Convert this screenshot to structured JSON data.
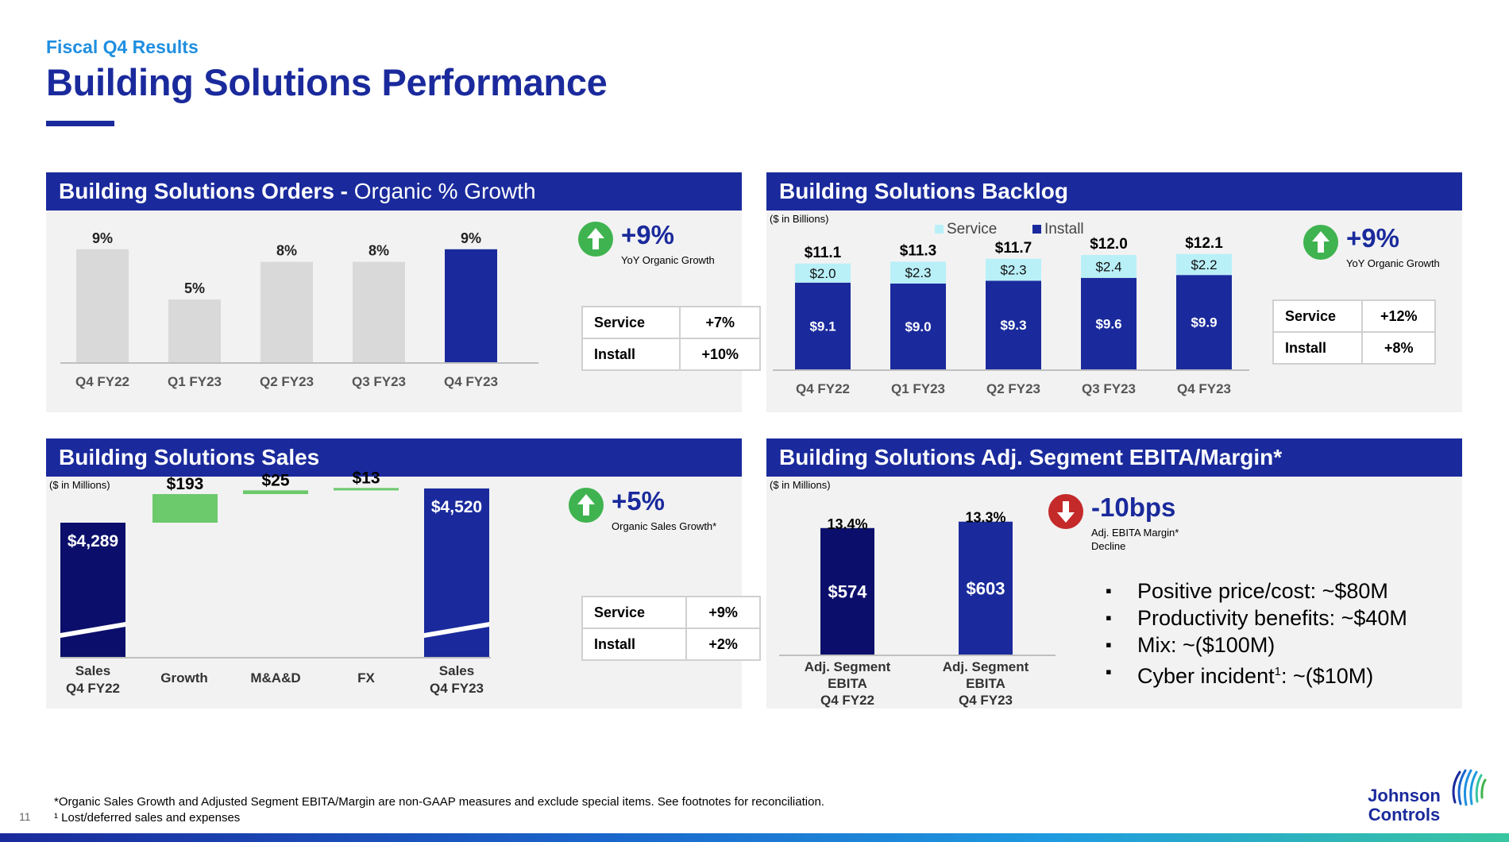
{
  "header": {
    "eyebrow": "Fiscal Q4 Results",
    "title": "Building Solutions Performance"
  },
  "colors": {
    "navy": "#1a2a9c",
    "dark_navy": "#0b0f6b",
    "light_blue": "#1f8fe0",
    "gray_bar": "#d9d9d9",
    "green": "#6cc96c",
    "cyan": "#b9f0f8",
    "up_green": "#3fb34f",
    "down_red": "#c42a2a"
  },
  "orders": {
    "title_bold": "Building Solutions Orders - ",
    "title_regular": "Organic % Growth",
    "kpi": {
      "icon": "arrow-up-icon",
      "value": "+9%",
      "label": "YoY Organic Growth"
    },
    "split": [
      {
        "label": "Service",
        "value": "+7%"
      },
      {
        "label": "Install",
        "value": "+10%"
      }
    ]
  },
  "backlog": {
    "title": "Building Solutions Backlog",
    "unit_note": "($ in Billions)",
    "kpi": {
      "icon": "arrow-up-icon",
      "value": "+9%",
      "label": "YoY Organic Growth"
    },
    "split": [
      {
        "label": "Service",
        "value": "+12%"
      },
      {
        "label": "Install",
        "value": "+8%"
      }
    ]
  },
  "sales": {
    "title": "Building Solutions Sales",
    "unit_note": "($ in Millions)",
    "kpi": {
      "icon": "arrow-up-icon",
      "value": "+5%",
      "label": "Organic Sales Growth*"
    },
    "split": [
      {
        "label": "Service",
        "value": "+9%"
      },
      {
        "label": "Install",
        "value": "+2%"
      }
    ]
  },
  "ebita": {
    "title": "Building Solutions Adj. Segment EBITA/Margin*",
    "unit_note": "($ in Millions)",
    "kpi": {
      "icon": "arrow-down-icon",
      "value": "-10bps",
      "label_line1": "Adj. EBITA Margin*",
      "label_line2": "Decline"
    },
    "bullets": [
      {
        "text": "Positive price/cost: ~$80M"
      },
      {
        "text": "Productivity benefits: ~$40M"
      },
      {
        "text": "Mix: ~($100M)"
      },
      {
        "pre": "Cyber incident",
        "sup": "1",
        "post": ": ~($10M)"
      }
    ]
  },
  "chart_data": [
    {
      "id": "orders",
      "type": "bar",
      "categories": [
        "Q4 FY22",
        "Q1 FY23",
        "Q2 FY23",
        "Q3 FY23",
        "Q4 FY23"
      ],
      "values": [
        9,
        5,
        8,
        8,
        9
      ],
      "data_labels": [
        "9%",
        "5%",
        "8%",
        "8%",
        "9%"
      ],
      "highlight_index": 4,
      "unit": "%",
      "ylim": [
        0,
        10
      ]
    },
    {
      "id": "backlog",
      "type": "bar",
      "stacked": true,
      "categories": [
        "Q4 FY22",
        "Q1 FY23",
        "Q2 FY23",
        "Q3 FY23",
        "Q4 FY23"
      ],
      "series": [
        {
          "name": "Install",
          "values": [
            9.1,
            9.0,
            9.3,
            9.6,
            9.9
          ],
          "labels": [
            "$9.1",
            "$9.0",
            "$9.3",
            "$9.6",
            "$9.9"
          ]
        },
        {
          "name": "Service",
          "values": [
            2.0,
            2.3,
            2.3,
            2.4,
            2.2
          ],
          "labels": [
            "$2.0",
            "$2.3",
            "$2.3",
            "$2.4",
            "$2.2"
          ]
        }
      ],
      "totals": [
        "$11.1",
        "$11.3",
        "$11.7",
        "$12.0",
        "$12.1"
      ],
      "legend": [
        "Service",
        "Install"
      ],
      "legend_position": "top",
      "ylim": [
        0,
        12.5
      ]
    },
    {
      "id": "sales",
      "type": "bar",
      "waterfall": true,
      "categories": [
        "Sales Q4 FY22",
        "Growth",
        "M&A&D",
        "FX",
        "Sales Q4 FY23"
      ],
      "category_lines": [
        [
          "Sales",
          "Q4 FY22"
        ],
        [
          "Growth"
        ],
        [
          "M&A&D"
        ],
        [
          "FX"
        ],
        [
          "Sales",
          "Q4 FY23"
        ]
      ],
      "values": [
        4289,
        193,
        25,
        13,
        4520
      ],
      "kinds": [
        "total",
        "delta",
        "delta",
        "delta",
        "total"
      ],
      "labels": [
        "$4,289",
        "$193",
        "$25",
        "$13",
        "$4,520"
      ],
      "axis_break": true
    },
    {
      "id": "ebita",
      "type": "bar",
      "categories": [
        "Adj. Segment EBITA Q4 FY22",
        "Adj. Segment EBITA Q4 FY23"
      ],
      "category_lines": [
        [
          "Adj. Segment",
          "EBITA",
          "Q4 FY22"
        ],
        [
          "Adj. Segment",
          "EBITA",
          "Q4 FY23"
        ]
      ],
      "values": [
        574,
        603
      ],
      "labels": [
        "$574",
        "$603"
      ],
      "margins": [
        "13.4%",
        "13.3%"
      ],
      "ylim": [
        0,
        620
      ]
    }
  ],
  "footer": {
    "note1": "*Organic Sales Growth and Adjusted Segment EBITA/Margin are non-GAAP measures and exclude special items. See footnotes for reconciliation.",
    "note2": "¹ Lost/deferred sales and expenses",
    "page_number": "11",
    "logo_line1": "Johnson",
    "logo_line2": "Controls",
    "logo_icon": "globe-swirl-logo"
  }
}
